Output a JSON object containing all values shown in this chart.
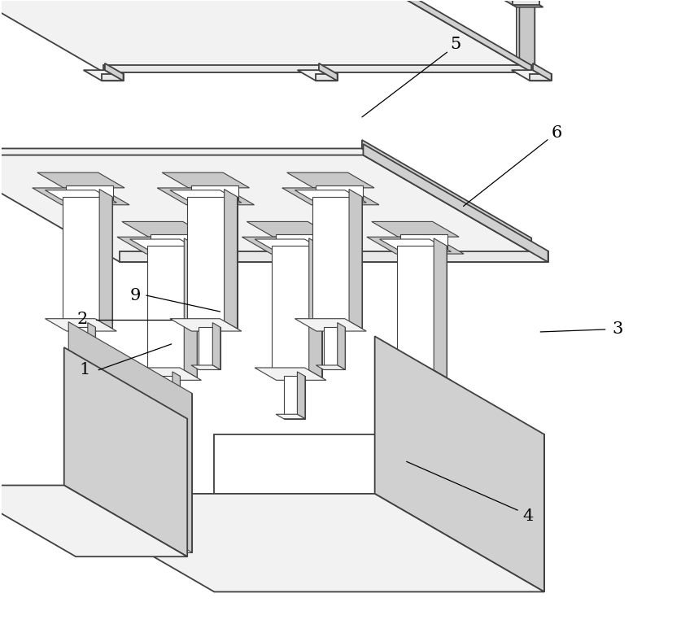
{
  "fig_width": 8.54,
  "fig_height": 7.83,
  "dpi": 100,
  "bg_color": "#ffffff",
  "lc": "#404040",
  "lc_thin": "#606060",
  "fill_top": "#f2f2f2",
  "fill_front": "#e8e8e8",
  "fill_right": "#d0d0d0",
  "fill_white": "#ffffff",
  "fill_mid": "#c8c8c8",
  "fill_dark": "#b0b0b0",
  "lw_main": 1.3,
  "lw_thin": 0.8,
  "lw_label": 0.9
}
